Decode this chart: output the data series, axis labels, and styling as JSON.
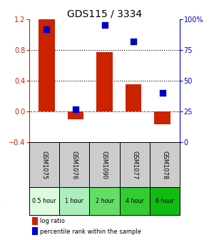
{
  "title": "GDS115 / 3334",
  "samples": [
    "GSM1075",
    "GSM1076",
    "GSM1090",
    "GSM1077",
    "GSM1078"
  ],
  "time_labels": [
    "0.5 hour",
    "1 hour",
    "2 hour",
    "4 hour",
    "6 hour"
  ],
  "time_colors": [
    "#ddfadd",
    "#aaeebb",
    "#66dd66",
    "#33cc33",
    "#11bb11"
  ],
  "log_ratios": [
    1.2,
    -0.1,
    0.77,
    0.35,
    -0.17
  ],
  "percentiles": [
    92,
    27,
    95,
    82,
    40
  ],
  "bar_color": "#cc2200",
  "dot_color": "#0000cc",
  "ylim_left": [
    -0.4,
    1.2
  ],
  "ylim_right": [
    0,
    100
  ],
  "hlines": [
    0.8,
    0.4
  ],
  "hline_color": "black",
  "zero_line_color": "#cc3333",
  "background_color": "#ffffff",
  "title_fontsize": 10,
  "bar_width": 0.55,
  "dot_size": 28,
  "left_yticks": [
    -0.4,
    0,
    0.4,
    0.8,
    1.2
  ],
  "right_yticks": [
    0,
    25,
    50,
    75,
    100
  ],
  "right_yticklabels": [
    "0",
    "25",
    "50",
    "75",
    "100%"
  ],
  "cell_color": "#cccccc",
  "label_fontsize": 6.0,
  "time_fontsize": 5.8
}
